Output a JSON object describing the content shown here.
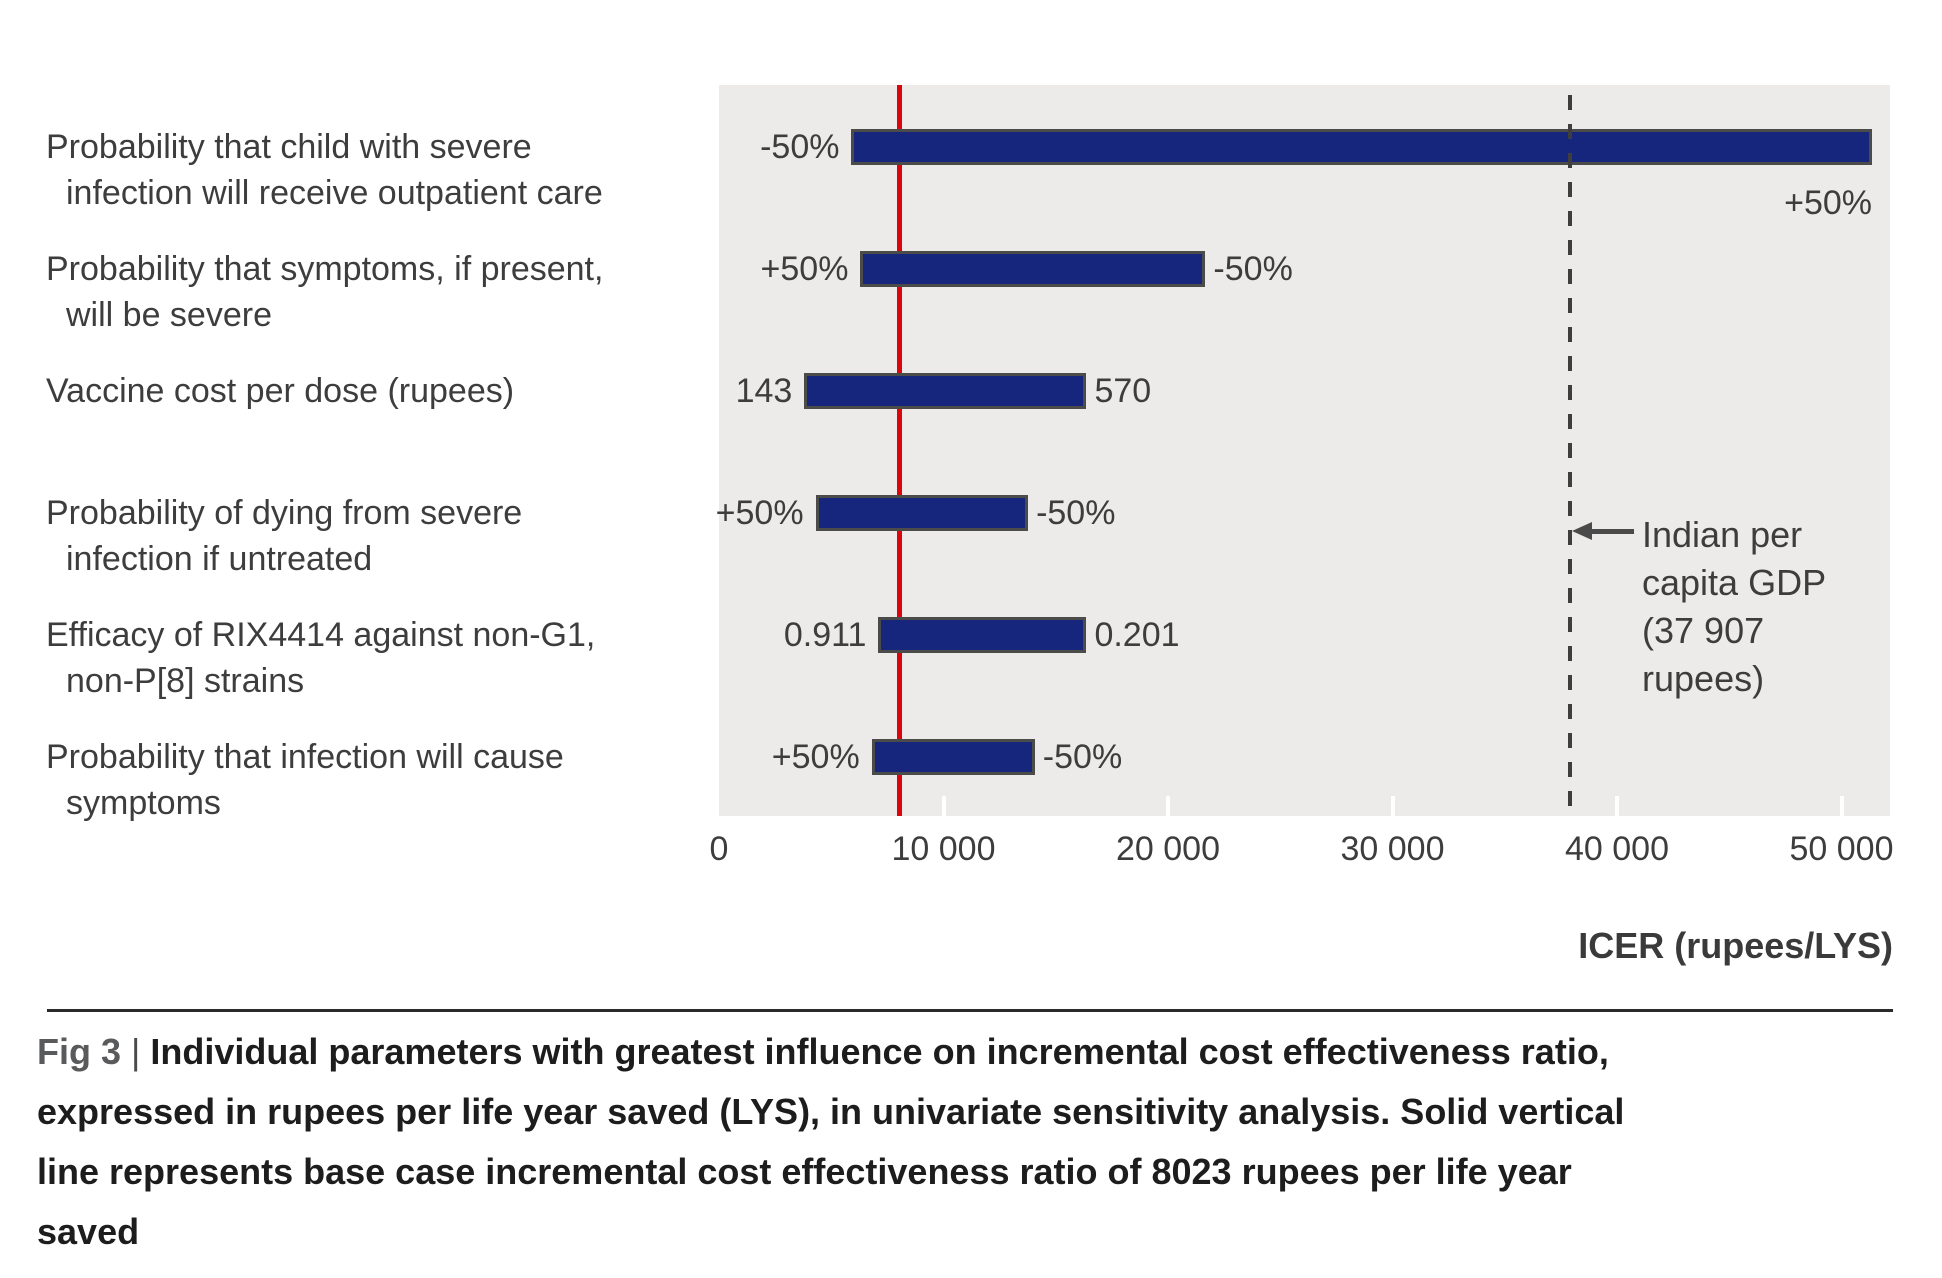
{
  "chart_data": {
    "type": "bar",
    "orientation": "horizontal-tornado",
    "title": "",
    "xlabel": "ICER (rupees/LYS)",
    "ylabel": "",
    "xlim": [
      0,
      52160
    ],
    "grid": false,
    "plot_bg_color": "#ecebe9",
    "bar_color": "#17267d",
    "bar_border_color": "#4b4b49",
    "x_ticks": [
      {
        "value": 0,
        "label": "0"
      },
      {
        "value": 10000,
        "label": "10 000"
      },
      {
        "value": 20000,
        "label": "20 000"
      },
      {
        "value": 30000,
        "label": "30 000"
      },
      {
        "value": 40000,
        "label": "40 000"
      },
      {
        "value": 50000,
        "label": "50 000"
      }
    ],
    "base_case_line": {
      "value": 8023,
      "color": "#dc050c",
      "meaning": "base case incremental cost effectiveness ratio"
    },
    "reference_line": {
      "value": 37907,
      "style": "dashed",
      "color": "#3f3e3e",
      "label_lines": [
        "Indian per",
        "capita GDP",
        "(37 907",
        "rupees)"
      ]
    },
    "bars": [
      {
        "category_lines": [
          "Probability that child with severe",
          "infection will receive outpatient care"
        ],
        "low": 5900,
        "high": 51100,
        "low_label": "-50%",
        "high_label": "+50%",
        "high_label_position": "below-right"
      },
      {
        "category_lines": [
          "Probability that symptoms, if present,",
          "will be severe"
        ],
        "low": 6300,
        "high": 21400,
        "low_label": "+50%",
        "high_label": "-50%",
        "high_label_position": "right"
      },
      {
        "category_lines": [
          "Vaccine cost per dose (rupees)"
        ],
        "low": 3800,
        "high": 16100,
        "low_label": "143",
        "high_label": "570",
        "high_label_position": "right"
      },
      {
        "category_lines": [
          "Probability of dying from severe",
          "infection if untreated"
        ],
        "low": 4300,
        "high": 13500,
        "low_label": "+50%",
        "high_label": "-50%",
        "high_label_position": "right"
      },
      {
        "category_lines": [
          "Efficacy of RIX4414 against non-G1,",
          "non-P[8] strains"
        ],
        "low": 7100,
        "high": 16100,
        "low_label": "0.911",
        "high_label": "0.201",
        "high_label_position": "right"
      },
      {
        "category_lines": [
          "Probability that infection will cause",
          "symptoms"
        ],
        "low": 6800,
        "high": 13800,
        "low_label": "+50%",
        "high_label": "-50%",
        "high_label_position": "right"
      }
    ]
  },
  "caption": {
    "fig_label": "Fig 3",
    "divider": "|",
    "lines": [
      "Individual parameters with greatest influence on incremental cost effectiveness ratio,",
      "expressed in rupees per life year saved (LYS), in univariate sensitivity analysis. Solid vertical",
      "line represents base case incremental cost effectiveness ratio of 8023 rupees per life year",
      "saved"
    ]
  }
}
